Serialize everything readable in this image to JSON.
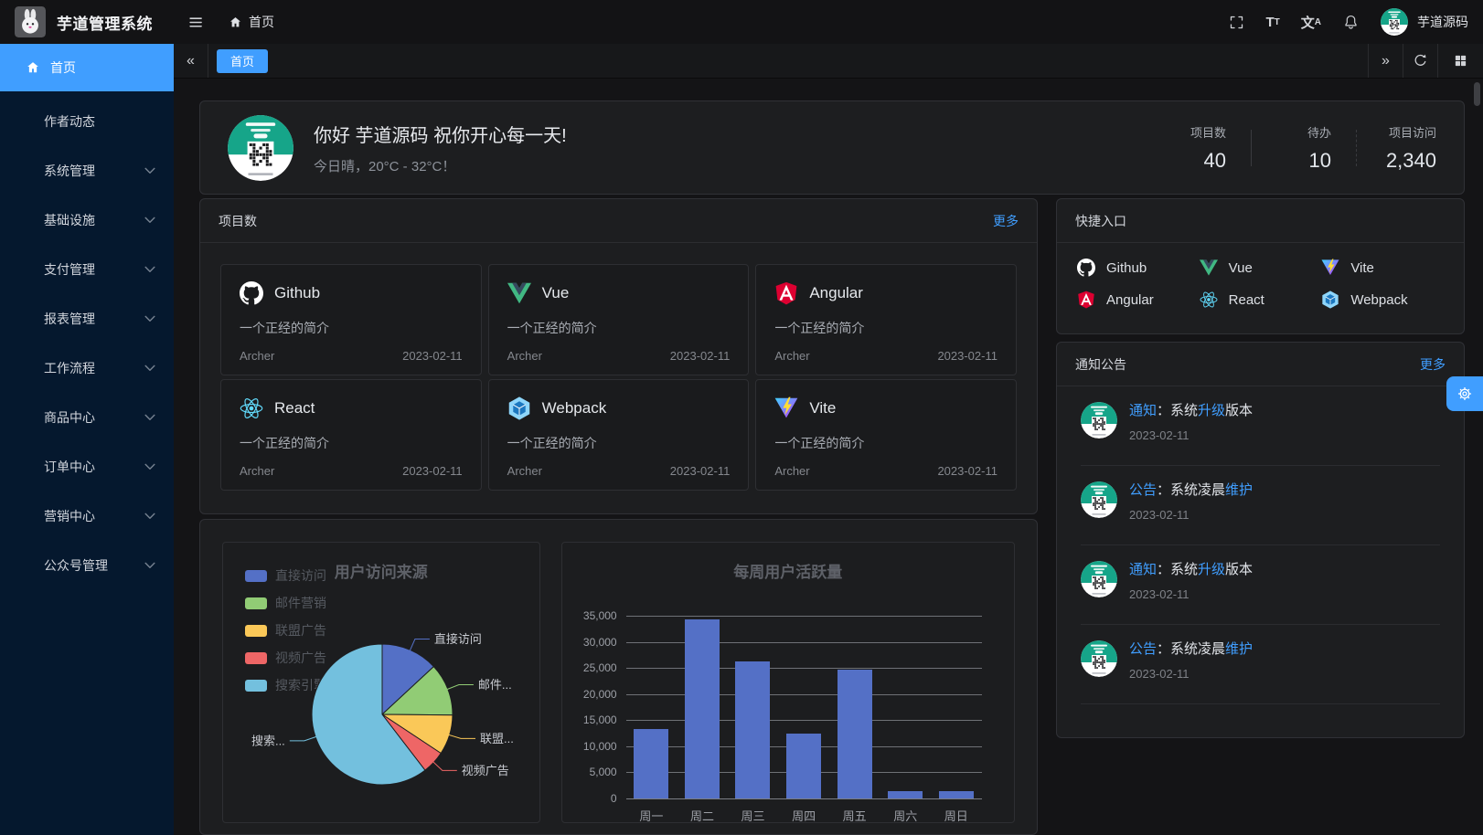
{
  "app": {
    "title": "芋道管理系统",
    "user": "芋道源码"
  },
  "navbar": {
    "breadcrumb": "首页",
    "font_icon_big": "T",
    "font_icon_small": "T",
    "lang_icon_big": "文",
    "lang_icon_small": "A",
    "icon_names": [
      "fullscreen-icon",
      "font-size-icon",
      "language-icon",
      "bell-icon",
      "user-avatar"
    ]
  },
  "tabbar": {
    "collapse": "«",
    "expand": "»",
    "control_icons": [
      "refresh-icon",
      "layout-grid-icon"
    ],
    "tabs": [
      {
        "label": "首页",
        "active": true
      }
    ]
  },
  "sidebar": {
    "items": [
      {
        "label": "首页",
        "icon": "home-icon",
        "active": true
      },
      {
        "label": "作者动态"
      },
      {
        "label": "系统管理",
        "expandable": true
      },
      {
        "label": "基础设施",
        "expandable": true
      },
      {
        "label": "支付管理",
        "expandable": true
      },
      {
        "label": "报表管理",
        "expandable": true
      },
      {
        "label": "工作流程",
        "expandable": true
      },
      {
        "label": "商品中心",
        "expandable": true
      },
      {
        "label": "订单中心",
        "expandable": true
      },
      {
        "label": "营销中心",
        "expandable": true
      },
      {
        "label": "公众号管理",
        "expandable": true
      }
    ]
  },
  "greeting": {
    "title": "你好 芋道源码 祝你开心每一天!",
    "subtitle": "今日晴，20°C - 32°C！",
    "stats": [
      {
        "label": "项目数",
        "value": "40"
      },
      {
        "label": "待办",
        "value": "10"
      },
      {
        "label": "项目访问",
        "value": "2,340"
      }
    ]
  },
  "projects": {
    "header": "项目数",
    "more": "更多",
    "items": [
      {
        "name": "Github",
        "icon": "github-icon",
        "desc": "一个正经的简介",
        "author": "Archer",
        "date": "2023-02-11"
      },
      {
        "name": "Vue",
        "icon": "vue-icon",
        "desc": "一个正经的简介",
        "author": "Archer",
        "date": "2023-02-11"
      },
      {
        "name": "Angular",
        "icon": "angular-icon",
        "desc": "一个正经的简介",
        "author": "Archer",
        "date": "2023-02-11"
      },
      {
        "name": "React",
        "icon": "react-icon",
        "desc": "一个正经的简介",
        "author": "Archer",
        "date": "2023-02-11"
      },
      {
        "name": "Webpack",
        "icon": "webpack-icon",
        "desc": "一个正经的简介",
        "author": "Archer",
        "date": "2023-02-11"
      },
      {
        "name": "Vite",
        "icon": "vite-icon",
        "desc": "一个正经的简介",
        "author": "Archer",
        "date": "2023-02-11"
      }
    ]
  },
  "shortcuts": {
    "header": "快捷入口",
    "items": [
      {
        "label": "Github",
        "icon": "github-icon"
      },
      {
        "label": "Vue",
        "icon": "vue-icon"
      },
      {
        "label": "Vite",
        "icon": "vite-icon"
      },
      {
        "label": "Angular",
        "icon": "angular-icon"
      },
      {
        "label": "React",
        "icon": "react-icon"
      },
      {
        "label": "Webpack",
        "icon": "webpack-icon"
      }
    ]
  },
  "notices": {
    "header": "通知公告",
    "more": "更多",
    "items": [
      {
        "segments": [
          {
            "t": "通知",
            "link": true
          },
          {
            "t": "：系统"
          },
          {
            "t": "升级",
            "link": true
          },
          {
            "t": "版本"
          }
        ],
        "date": "2023-02-11"
      },
      {
        "segments": [
          {
            "t": "公告",
            "link": true
          },
          {
            "t": "：系统凌晨"
          },
          {
            "t": "维护",
            "link": true
          }
        ],
        "date": "2023-02-11"
      },
      {
        "segments": [
          {
            "t": "通知",
            "link": true
          },
          {
            "t": "：系统"
          },
          {
            "t": "升级",
            "link": true
          },
          {
            "t": "版本"
          }
        ],
        "date": "2023-02-11"
      },
      {
        "segments": [
          {
            "t": "公告",
            "link": true
          },
          {
            "t": "：系统凌晨"
          },
          {
            "t": "维护",
            "link": true
          }
        ],
        "date": "2023-02-11"
      }
    ]
  },
  "colors": {
    "accent": "#409eff",
    "sidebar_bg": "#05182e",
    "card_bg": "#1d1e20",
    "qr_green": "#16a589"
  },
  "chart_data": [
    {
      "type": "pie",
      "title": "用户访问来源",
      "legend_position": "top-left",
      "grid": false,
      "series": [
        {
          "name": "直接访问",
          "value": 335,
          "color": "#5470c6",
          "callout": "直接访问"
        },
        {
          "name": "邮件营销",
          "value": 310,
          "color": "#91cc75",
          "callout": "邮件..."
        },
        {
          "name": "联盟广告",
          "value": 234,
          "color": "#fac858",
          "callout": "联盟..."
        },
        {
          "name": "视频广告",
          "value": 135,
          "color": "#ee6666",
          "callout": "视频广告"
        },
        {
          "name": "搜索引擎",
          "value": 1548,
          "color": "#73c0de",
          "callout": "搜索..."
        }
      ]
    },
    {
      "type": "bar",
      "title": "每周用户活跃量",
      "categories": [
        "周一",
        "周二",
        "周三",
        "周四",
        "周五",
        "周六",
        "周日"
      ],
      "values": [
        13253,
        34235,
        26321,
        12340,
        24643,
        1322,
        1324
      ],
      "xlabel": "",
      "ylabel": "",
      "ylim": [
        0,
        35000
      ],
      "ytick_step": 5000,
      "ytick_labels": [
        "0",
        "5,000",
        "10,000",
        "15,000",
        "20,000",
        "25,000",
        "30,000",
        "35,000"
      ],
      "bar_color": "#5470c6",
      "grid": true,
      "legend_position": "none"
    }
  ]
}
